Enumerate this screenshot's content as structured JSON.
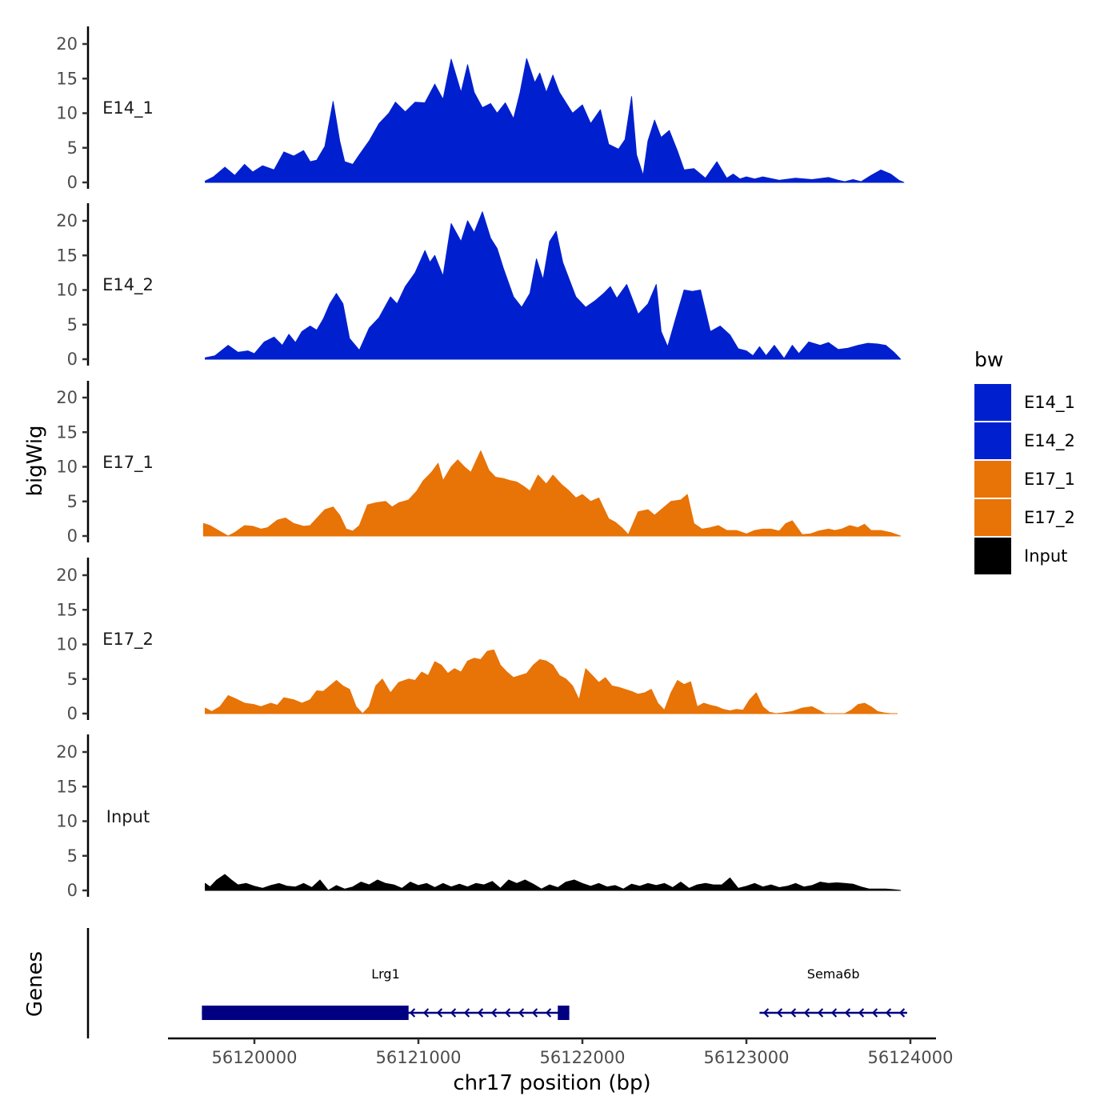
{
  "chart_data": {
    "type": "area",
    "title": "",
    "xlabel": "chr17 position (bp)",
    "ylabel": "bigWig",
    "genes_label": "Genes",
    "xlim": [
      56119480,
      56124130
    ],
    "ylim": [
      0,
      22
    ],
    "x_ticks": [
      56120000,
      56121000,
      56122000,
      56123000,
      56124000
    ],
    "x_tick_labels": [
      "56120000",
      "56121000",
      "56122000",
      "56123000",
      "56124000"
    ],
    "y_ticks": [
      0,
      5,
      10,
      15,
      20
    ],
    "y_tick_labels": [
      "0",
      "5",
      "10",
      "15",
      "20"
    ],
    "legend": {
      "title": "bw",
      "entries": [
        {
          "name": "E14_1",
          "color": "#0020cf"
        },
        {
          "name": "E14_2",
          "color": "#0020cf"
        },
        {
          "name": "E17_1",
          "color": "#e87306"
        },
        {
          "name": "E17_2",
          "color": "#e87306"
        },
        {
          "name": "Input",
          "color": "#000000"
        }
      ]
    },
    "series": [
      {
        "name": "E14_1",
        "color": "#0020cf",
        "x": [
          56119700,
          56119750,
          56119820,
          56119880,
          56119940,
          56119990,
          56120050,
          56120120,
          56120180,
          56120240,
          56120300,
          56120340,
          56120380,
          56120430,
          56120480,
          56120520,
          56120550,
          56120600,
          56120640,
          56120700,
          56120760,
          56120820,
          56120860,
          56120920,
          56120980,
          56121040,
          56121100,
          56121150,
          56121200,
          56121260,
          56121300,
          56121340,
          56121390,
          56121440,
          56121480,
          56121530,
          56121580,
          56121620,
          56121660,
          56121710,
          56121740,
          56121780,
          56121820,
          56121860,
          56121900,
          56121940,
          56122000,
          56122050,
          56122110,
          56122160,
          56122220,
          56122260,
          56122300,
          56122330,
          56122370,
          56122400,
          56122440,
          56122480,
          56122530,
          56122580,
          56122620,
          56122680,
          56122750,
          56122820,
          56122880,
          56122920,
          56122960,
          56123000,
          56123050,
          56123100,
          56123200,
          56123300,
          56123400,
          56123500,
          56123560,
          56123600,
          56123650,
          56123700,
          56123760,
          56123820,
          56123880,
          56123930,
          56123960
        ],
        "values": [
          0.2,
          0.8,
          2.2,
          1.0,
          2.6,
          1.5,
          2.4,
          1.8,
          4.4,
          3.8,
          4.6,
          3.0,
          3.2,
          5.2,
          11.7,
          6.0,
          3.0,
          2.6,
          4.0,
          6.0,
          8.5,
          10.0,
          11.6,
          10.2,
          11.6,
          11.5,
          14.2,
          12.0,
          17.8,
          13.0,
          17.0,
          13.0,
          10.8,
          11.4,
          10.0,
          11.5,
          9.2,
          13.0,
          17.9,
          14.4,
          15.8,
          13.0,
          15.5,
          13.0,
          11.5,
          10.0,
          11.2,
          8.5,
          10.5,
          5.5,
          4.8,
          6.2,
          12.4,
          4.0,
          1.0,
          6.0,
          9.0,
          6.5,
          7.5,
          4.5,
          1.8,
          2.0,
          0.6,
          3.0,
          0.6,
          1.2,
          0.5,
          0.8,
          0.5,
          0.8,
          0.3,
          0.6,
          0.4,
          0.7,
          0.3,
          0.1,
          0.4,
          0.1,
          1.0,
          1.8,
          1.2,
          0.3,
          0.0
        ]
      },
      {
        "name": "E14_2",
        "color": "#0020cf",
        "x": [
          56119700,
          56119760,
          56119840,
          56119900,
          56119960,
          56120000,
          56120060,
          56120120,
          56120170,
          56120210,
          56120250,
          56120290,
          56120340,
          56120380,
          56120420,
          56120460,
          56120500,
          56120540,
          56120580,
          56120640,
          56120700,
          56120760,
          56120830,
          56120870,
          56120920,
          56120980,
          56121040,
          56121070,
          56121100,
          56121150,
          56121200,
          56121260,
          56121300,
          56121340,
          56121390,
          56121440,
          56121480,
          56121520,
          56121580,
          56121630,
          56121680,
          56121720,
          56121760,
          56121800,
          56121840,
          56121880,
          56121920,
          56121960,
          56122020,
          56122080,
          56122130,
          56122170,
          56122210,
          56122270,
          56122340,
          56122400,
          56122450,
          56122480,
          56122520,
          56122570,
          56122620,
          56122670,
          56122720,
          56122780,
          56122840,
          56122900,
          56122950,
          56123000,
          56123040,
          56123080,
          56123120,
          56123170,
          56123230,
          56123280,
          56123320,
          56123380,
          56123450,
          56123500,
          56123560,
          56123620,
          56123680,
          56123740,
          56123800,
          56123850,
          56123900,
          56123940
        ],
        "values": [
          0.2,
          0.5,
          2.0,
          1.0,
          1.2,
          0.8,
          2.5,
          3.2,
          2.0,
          3.6,
          2.4,
          4.0,
          4.8,
          4.2,
          5.8,
          8.0,
          9.5,
          8.0,
          3.0,
          1.3,
          4.5,
          6.0,
          9.0,
          8.0,
          10.5,
          12.5,
          15.7,
          14.0,
          15.0,
          12.0,
          19.6,
          17.0,
          20.0,
          18.3,
          21.3,
          17.5,
          16.0,
          13.0,
          9.0,
          7.5,
          9.5,
          14.5,
          11.5,
          17.0,
          18.5,
          14.0,
          11.5,
          9.0,
          7.5,
          8.5,
          9.5,
          10.5,
          8.8,
          10.8,
          6.5,
          8.0,
          10.8,
          4.0,
          1.8,
          6.0,
          10.0,
          9.8,
          10.0,
          4.0,
          4.8,
          3.5,
          1.5,
          1.2,
          0.5,
          1.8,
          0.5,
          2.0,
          0.1,
          2.0,
          0.8,
          2.5,
          2.0,
          2.4,
          1.4,
          1.6,
          2.0,
          2.3,
          2.2,
          2.0,
          1.0,
          0.0
        ]
      },
      {
        "name": "E17_1",
        "color": "#e87306",
        "x": [
          56119690,
          56119730,
          56119780,
          56119840,
          56119880,
          56119940,
          56119990,
          56120040,
          56120080,
          56120140,
          56120190,
          56120240,
          56120300,
          56120340,
          56120390,
          56120430,
          56120480,
          56120520,
          56120560,
          56120600,
          56120640,
          56120690,
          56120740,
          56120800,
          56120840,
          56120880,
          56120940,
          56120990,
          56121030,
          56121080,
          56121120,
          56121150,
          56121200,
          56121240,
          56121280,
          56121320,
          56121380,
          56121430,
          56121470,
          56121520,
          56121560,
          56121600,
          56121640,
          56121680,
          56121730,
          56121780,
          56121820,
          56121870,
          56121920,
          56121960,
          56122000,
          56122050,
          56122100,
          56122160,
          56122200,
          56122240,
          56122280,
          56122340,
          56122400,
          56122440,
          56122490,
          56122540,
          56122600,
          56122640,
          56122680,
          56122730,
          56122780,
          56122830,
          56122880,
          56122940,
          56123000,
          56123050,
          56123100,
          56123150,
          56123200,
          56123240,
          56123280,
          56123340,
          56123390,
          56123440,
          56123500,
          56123540,
          56123580,
          56123630,
          56123680,
          56123720,
          56123760,
          56123820,
          56123880,
          56123940
        ],
        "values": [
          1.8,
          1.5,
          0.8,
          0.0,
          0.5,
          1.5,
          1.4,
          1.0,
          1.2,
          2.3,
          2.6,
          1.8,
          1.4,
          1.5,
          2.8,
          3.8,
          4.2,
          3.0,
          1.0,
          0.7,
          1.5,
          4.5,
          4.8,
          5.0,
          4.2,
          4.8,
          5.2,
          6.5,
          8.0,
          9.2,
          10.5,
          8.0,
          10.0,
          11.0,
          10.0,
          9.2,
          12.3,
          9.5,
          8.5,
          8.3,
          8.0,
          7.8,
          7.2,
          6.5,
          8.8,
          7.5,
          8.8,
          7.5,
          6.5,
          5.5,
          6.0,
          5.0,
          5.5,
          2.5,
          2.0,
          1.2,
          0.2,
          3.5,
          3.8,
          3.0,
          4.0,
          5.0,
          5.2,
          6.0,
          1.8,
          1.0,
          1.2,
          1.5,
          0.8,
          0.8,
          0.3,
          0.8,
          1.0,
          1.0,
          0.7,
          1.8,
          2.2,
          0.2,
          0.3,
          0.7,
          1.0,
          0.8,
          1.0,
          1.5,
          1.2,
          1.7,
          0.8,
          0.8,
          0.5,
          0.0
        ]
      },
      {
        "name": "E17_2",
        "color": "#e87306",
        "x": [
          56119700,
          56119740,
          56119790,
          56119840,
          56119880,
          56119940,
          56120000,
          56120040,
          56120100,
          56120140,
          56120180,
          56120240,
          56120290,
          56120340,
          56120380,
          56120420,
          56120460,
          56120500,
          56120540,
          56120580,
          56120620,
          56120660,
          56120700,
          56120740,
          56120780,
          56120830,
          56120880,
          56120940,
          56120980,
          56121020,
          56121060,
          56121100,
          56121140,
          56121180,
          56121220,
          56121260,
          56121300,
          56121340,
          56121380,
          56121420,
          56121460,
          56121500,
          56121540,
          56121580,
          56121620,
          56121660,
          56121700,
          56121740,
          56121780,
          56121820,
          56121860,
          56121900,
          56121940,
          56121980,
          56122020,
          56122060,
          56122100,
          56122140,
          56122180,
          56122220,
          56122260,
          56122300,
          56122340,
          56122380,
          56122420,
          56122460,
          56122500,
          56122540,
          56122580,
          56122620,
          56122660,
          56122700,
          56122740,
          56122780,
          56122820,
          56122860,
          56122900,
          56122940,
          56122980,
          56123020,
          56123060,
          56123100,
          56123140,
          56123180,
          56123220,
          56123280,
          56123340,
          56123400,
          56123440,
          56123480,
          56123520,
          56123560,
          56123600,
          56123640,
          56123680,
          56123720,
          56123760,
          56123800,
          56123840,
          56123880,
          56123920
        ],
        "values": [
          0.8,
          0.3,
          1.0,
          2.6,
          2.2,
          1.5,
          1.3,
          1.0,
          1.5,
          1.2,
          2.3,
          2.0,
          1.5,
          2.0,
          3.3,
          3.2,
          4.0,
          4.8,
          4.0,
          3.5,
          1.0,
          0.0,
          1.0,
          4.0,
          5.0,
          3.0,
          4.5,
          5.0,
          4.8,
          6.0,
          5.5,
          7.5,
          7.0,
          5.8,
          6.5,
          6.0,
          7.6,
          8.0,
          7.8,
          9.0,
          9.2,
          7.0,
          6.0,
          5.2,
          5.5,
          5.8,
          7.0,
          7.8,
          7.6,
          7.0,
          5.5,
          5.0,
          4.0,
          2.0,
          6.5,
          5.5,
          4.5,
          5.2,
          4.0,
          3.8,
          3.5,
          3.2,
          2.8,
          3.0,
          3.5,
          1.5,
          0.5,
          3.0,
          4.8,
          4.2,
          4.6,
          1.0,
          1.5,
          1.2,
          1.0,
          0.6,
          0.4,
          0.6,
          0.5,
          2.0,
          3.0,
          1.0,
          0.2,
          0.0,
          0.1,
          0.3,
          0.8,
          1.0,
          0.5,
          0.0,
          0.0,
          0.0,
          0.0,
          0.5,
          1.3,
          1.5,
          1.0,
          0.3,
          0.1,
          0.0,
          0.0
        ]
      },
      {
        "name": "Input",
        "color": "#000000",
        "x": [
          56119700,
          56119730,
          56119770,
          56119820,
          56119860,
          56119900,
          56119950,
          56120000,
          56120050,
          56120100,
          56120150,
          56120200,
          56120250,
          56120300,
          56120350,
          56120400,
          56120450,
          56120500,
          56120550,
          56120600,
          56120650,
          56120700,
          56120750,
          56120800,
          56120850,
          56120900,
          56120950,
          56121000,
          56121050,
          56121100,
          56121150,
          56121200,
          56121250,
          56121300,
          56121350,
          56121400,
          56121450,
          56121500,
          56121550,
          56121600,
          56121650,
          56121700,
          56121750,
          56121800,
          56121850,
          56121900,
          56121950,
          56122000,
          56122050,
          56122100,
          56122150,
          56122200,
          56122250,
          56122300,
          56122350,
          56122400,
          56122450,
          56122500,
          56122550,
          56122600,
          56122650,
          56122700,
          56122750,
          56122800,
          56122850,
          56122900,
          56122950,
          56123000,
          56123050,
          56123100,
          56123150,
          56123200,
          56123250,
          56123300,
          56123350,
          56123400,
          56123450,
          56123500,
          56123550,
          56123600,
          56123650,
          56123700,
          56123750,
          56123800,
          56123850,
          56123900,
          56123940
        ],
        "values": [
          1.0,
          0.5,
          1.5,
          2.3,
          1.5,
          0.8,
          1.0,
          0.6,
          0.3,
          0.7,
          1.0,
          0.6,
          0.5,
          1.0,
          0.4,
          1.5,
          0.0,
          0.7,
          0.2,
          0.5,
          1.2,
          0.8,
          1.5,
          1.0,
          0.8,
          0.3,
          1.2,
          0.7,
          1.0,
          0.4,
          1.0,
          0.5,
          0.9,
          0.5,
          1.0,
          0.8,
          1.3,
          0.3,
          1.5,
          1.0,
          1.5,
          0.9,
          0.2,
          0.8,
          0.4,
          1.2,
          1.5,
          1.0,
          0.6,
          1.0,
          0.5,
          0.7,
          0.2,
          0.9,
          0.6,
          1.0,
          0.7,
          1.0,
          0.4,
          1.2,
          0.3,
          0.8,
          1.0,
          0.8,
          0.8,
          1.8,
          0.3,
          0.6,
          1.0,
          0.5,
          0.8,
          0.4,
          0.6,
          1.0,
          0.5,
          0.7,
          1.2,
          1.0,
          1.1,
          1.0,
          0.9,
          0.5,
          0.2,
          0.2,
          0.2,
          0.1,
          0.0
        ]
      }
    ],
    "genes": [
      {
        "name": "Lrg1",
        "start": 56119680,
        "end": 56121920,
        "strand": "-",
        "color": "#000080",
        "exons": [
          [
            56119680,
            56120940
          ],
          [
            56121850,
            56121920
          ]
        ]
      },
      {
        "name": "Sema6b",
        "start": 56123080,
        "end": 56123980,
        "strand": "-",
        "color": "#000080",
        "exons": []
      }
    ]
  }
}
